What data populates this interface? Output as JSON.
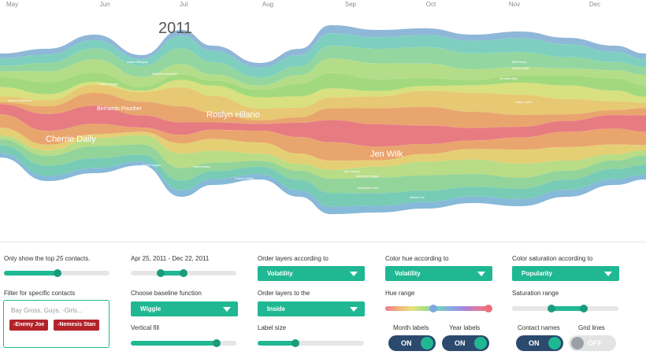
{
  "chart_data": {
    "type": "area",
    "subtype": "streamgraph",
    "year_label": "2011",
    "x_ticks": [
      "May",
      "Jun",
      "Jul",
      "Aug",
      "Sep",
      "Oct",
      "Nov",
      "Dec"
    ],
    "contact_labels": [
      "Cherrie Daily",
      "Bernardo Poucher",
      "Roslyn Hilario",
      "Jen Wilk",
      "Renee Stottlebird",
      "Steve Haggle",
      "Isaiah Hilleguer",
      "Natasha Hovnotin",
      "Hobie Helgen",
      "Hammersley",
      "Ilsa Jessup",
      "Josephine Flee",
      "Michelle Burgan",
      "Bill Flenes",
      "Gillian Hock",
      "Jenessa Ball",
      "Kate Lonnie",
      "Felicia Griffith",
      "Nisha Lolo"
    ],
    "grid": false,
    "legend": "none"
  },
  "controls": {
    "top_contacts": {
      "pre": "Only show the top",
      "count": "25",
      "post": "contacts.",
      "value": 0.5
    },
    "date_range": {
      "label": "Apr 25, 2011 - Dec 22, 2011",
      "start": 0.28,
      "end": 0.5
    },
    "order_layers": {
      "label": "Order layers according to",
      "value": "Volatility"
    },
    "color_hue": {
      "label": "Color hue according to",
      "value": "Volatility"
    },
    "color_saturation": {
      "label": "Color saturation according to",
      "value": "Popularity"
    },
    "filter": {
      "label": "Filter for specific contacts",
      "placeholder": "Bay Gross,  Guys,  -Girls...",
      "chips": [
        "-Enemy Joe",
        "-Nemesis Stan"
      ]
    },
    "baseline": {
      "label": "Choose baseline function",
      "value": "Wiggle"
    },
    "order_to": {
      "label": "Order layers to the",
      "value": "Inside"
    },
    "hue_range": {
      "label": "Hue range",
      "start": 0.47,
      "end": 0.97
    },
    "saturation_range": {
      "label": "Saturation range",
      "start": 0.37,
      "end": 0.67
    },
    "vertical_fill": {
      "label": "Vertical fill",
      "value": 0.8
    },
    "label_size": {
      "label": "Label size",
      "value": 0.35
    },
    "toggles": {
      "month_labels": {
        "label": "Month labels",
        "state": "ON"
      },
      "year_labels": {
        "label": "Year labels",
        "state": "ON"
      },
      "contact_names": {
        "label": "Contact names",
        "state": "ON"
      },
      "grid_lines": {
        "label": "Grid lines",
        "state": "OFF"
      }
    }
  },
  "colors": {
    "accent": "#1fb893",
    "toggle_on": "#2c4a6e",
    "chip": "#b3232a"
  }
}
